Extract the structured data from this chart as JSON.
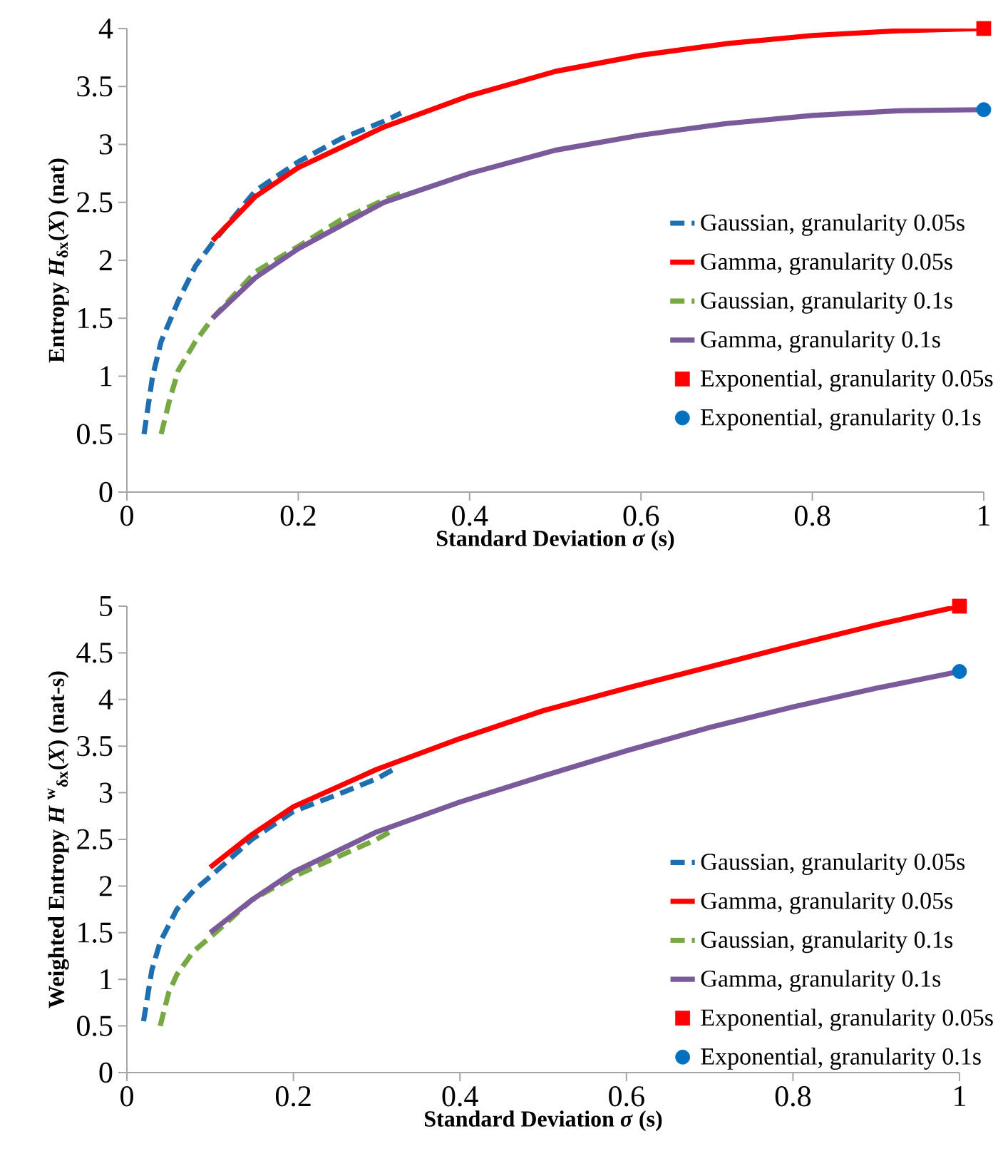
{
  "chart_data": [
    {
      "type": "line",
      "xlabel": "Standard Deviation *σ* (s)",
      "ylabel": "Entropy *H*$_{δx}$(*X*) (nat)",
      "xlim": [
        0,
        1
      ],
      "xticks": [
        0,
        0.2,
        0.4,
        0.6,
        0.8,
        1
      ],
      "ylim": [
        0,
        4
      ],
      "yticks": [
        0,
        0.5,
        1,
        1.5,
        2,
        2.5,
        3,
        3.5,
        4
      ],
      "grid": false,
      "legend": "right",
      "series": [
        {
          "name": "Gaussian, granularity 0.05s",
          "color": "#1f6fb0",
          "line_style": "dashed",
          "x": [
            0.02,
            0.03,
            0.04,
            0.06,
            0.08,
            0.1,
            0.15,
            0.2,
            0.25,
            0.3,
            0.32
          ],
          "values": [
            0.5,
            1.0,
            1.3,
            1.65,
            1.95,
            2.15,
            2.6,
            2.85,
            3.05,
            3.2,
            3.27
          ]
        },
        {
          "name": "Gamma, granularity 0.05s",
          "color": "#ff0000",
          "line_style": "solid",
          "x": [
            0.1,
            0.15,
            0.2,
            0.3,
            0.4,
            0.5,
            0.6,
            0.7,
            0.8,
            0.9,
            1.0
          ],
          "values": [
            2.17,
            2.55,
            2.8,
            3.15,
            3.42,
            3.63,
            3.77,
            3.87,
            3.94,
            3.98,
            4.0
          ]
        },
        {
          "name": "Gaussian, granularity 0.1s",
          "color": "#77a843",
          "line_style": "dashed",
          "x": [
            0.04,
            0.05,
            0.06,
            0.08,
            0.1,
            0.15,
            0.2,
            0.25,
            0.3,
            0.32
          ],
          "values": [
            0.5,
            0.8,
            1.05,
            1.3,
            1.5,
            1.9,
            2.12,
            2.35,
            2.52,
            2.58
          ]
        },
        {
          "name": "Gamma, granularity 0.1s",
          "color": "#7a5a9a",
          "line_style": "solid",
          "x": [
            0.1,
            0.15,
            0.2,
            0.3,
            0.4,
            0.5,
            0.6,
            0.7,
            0.8,
            0.9,
            1.0
          ],
          "values": [
            1.5,
            1.85,
            2.1,
            2.5,
            2.75,
            2.95,
            3.08,
            3.18,
            3.25,
            3.29,
            3.3
          ]
        },
        {
          "name": "Exponential, granularity 0.05s",
          "type": "scatter",
          "marker": "square",
          "color": "#ff0000",
          "x": [
            1.0
          ],
          "values": [
            4.0
          ]
        },
        {
          "name": "Exponential, granularity 0.1s",
          "type": "scatter",
          "marker": "circle",
          "color": "#0070c0",
          "x": [
            1.0
          ],
          "values": [
            3.3
          ]
        }
      ]
    },
    {
      "type": "line",
      "xlabel": "Standard Deviation *σ* (s)",
      "ylabel": "Weighted Entropy *H* $^{w}$$_{δx}$(*X*) (nat-s)",
      "xlim": [
        0,
        1
      ],
      "xticks": [
        0,
        0.2,
        0.4,
        0.6,
        0.8,
        1
      ],
      "ylim": [
        0,
        5
      ],
      "yticks": [
        0,
        0.5,
        1,
        1.5,
        2,
        2.5,
        3,
        3.5,
        4,
        4.5,
        5
      ],
      "grid": false,
      "legend": "bottom right",
      "series": [
        {
          "name": "Gaussian, granularity 0.05s",
          "color": "#1f6fb0",
          "line_style": "dashed",
          "x": [
            0.02,
            0.03,
            0.04,
            0.06,
            0.08,
            0.1,
            0.15,
            0.2,
            0.25,
            0.3,
            0.32
          ],
          "values": [
            0.55,
            1.1,
            1.4,
            1.75,
            1.95,
            2.1,
            2.5,
            2.8,
            2.97,
            3.15,
            3.25
          ]
        },
        {
          "name": "Gamma, granularity 0.05s",
          "color": "#ff0000",
          "line_style": "solid",
          "x": [
            0.1,
            0.15,
            0.2,
            0.3,
            0.4,
            0.5,
            0.6,
            0.7,
            0.8,
            0.9,
            1.0
          ],
          "values": [
            2.2,
            2.55,
            2.85,
            3.25,
            3.58,
            3.88,
            4.12,
            4.35,
            4.58,
            4.8,
            5.0
          ]
        },
        {
          "name": "Gaussian, granularity 0.1s",
          "color": "#77a843",
          "line_style": "dashed",
          "x": [
            0.04,
            0.05,
            0.06,
            0.08,
            0.1,
            0.15,
            0.2,
            0.25,
            0.3,
            0.32
          ],
          "values": [
            0.5,
            0.85,
            1.05,
            1.3,
            1.45,
            1.85,
            2.1,
            2.3,
            2.5,
            2.6
          ]
        },
        {
          "name": "Gamma, granularity 0.1s",
          "color": "#7a5a9a",
          "line_style": "solid",
          "x": [
            0.1,
            0.15,
            0.2,
            0.3,
            0.4,
            0.5,
            0.6,
            0.7,
            0.8,
            0.9,
            1.0
          ],
          "values": [
            1.5,
            1.85,
            2.15,
            2.58,
            2.9,
            3.18,
            3.45,
            3.7,
            3.92,
            4.12,
            4.3
          ]
        },
        {
          "name": "Exponential, granularity 0.05s",
          "type": "scatter",
          "marker": "square",
          "color": "#ff0000",
          "x": [
            1.0
          ],
          "values": [
            5.0
          ]
        },
        {
          "name": "Exponential, granularity 0.1s",
          "type": "scatter",
          "marker": "circle",
          "color": "#0070c0",
          "x": [
            1.0
          ],
          "values": [
            4.3
          ]
        }
      ]
    }
  ]
}
